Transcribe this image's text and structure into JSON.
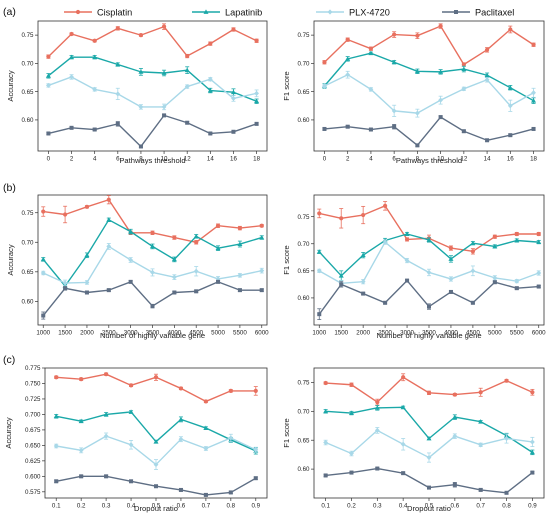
{
  "legend": {
    "colors": [
      "#e8705f",
      "#1aa8a8",
      "#a8d8e8",
      "#5e6e84"
    ],
    "markers": [
      "circle",
      "triangle",
      "diamond",
      "square"
    ]
  },
  "panel_labels": [
    "(a)",
    "(b)",
    "(c)"
  ],
  "chart_data": [
    {
      "type": "line",
      "panel": "(a)",
      "side": "left",
      "xlabel": "Pathways threshold",
      "ylabel": "Accuracy",
      "x": [
        0,
        2,
        4,
        6,
        8,
        10,
        12,
        14,
        16,
        18
      ],
      "xlim": [
        -0.9,
        18.9
      ],
      "ylim": [
        0.545,
        0.775
      ],
      "yticks": [
        0.6,
        0.65,
        0.7,
        0.75
      ],
      "ytick_labels": [
        "0.60",
        "0.65",
        "0.70",
        "0.75"
      ],
      "grid": false,
      "series": [
        {
          "name": "Cisplatin",
          "values": [
            0.712,
            0.752,
            0.74,
            0.762,
            0.75,
            0.765,
            0.713,
            0.735,
            0.76,
            0.74
          ],
          "err": [
            0.003,
            0.002,
            0.002,
            0.003,
            0.002,
            0.005,
            0.003,
            0.003,
            0.003,
            0.003
          ]
        },
        {
          "name": "Lapatinib",
          "values": [
            0.678,
            0.711,
            0.711,
            0.698,
            0.685,
            0.683,
            0.688,
            0.652,
            0.649,
            0.633
          ],
          "err": [
            0.004,
            0.003,
            0.003,
            0.003,
            0.006,
            0.005,
            0.006,
            0.004,
            0.006,
            0.004
          ]
        },
        {
          "name": "PLX-4720",
          "values": [
            0.661,
            0.676,
            0.654,
            0.646,
            0.623,
            0.623,
            0.659,
            0.672,
            0.638,
            0.647
          ],
          "err": [
            0.003,
            0.004,
            0.003,
            0.01,
            0.004,
            0.005,
            0.003,
            0.003,
            0.005,
            0.006
          ]
        },
        {
          "name": "Paclitaxel",
          "values": [
            0.576,
            0.586,
            0.583,
            0.593,
            0.553,
            0.608,
            0.595,
            0.576,
            0.579,
            0.593
          ],
          "err": [
            0.002,
            0.002,
            0.002,
            0.004,
            0.002,
            0.002,
            0.002,
            0.002,
            0.002,
            0.002
          ]
        }
      ]
    },
    {
      "type": "line",
      "panel": "(a)",
      "side": "right",
      "xlabel": "Pathways threshold",
      "ylabel": "F1 score",
      "x": [
        0,
        2,
        4,
        6,
        8,
        10,
        12,
        14,
        16,
        18
      ],
      "xlim": [
        -0.9,
        18.9
      ],
      "ylim": [
        0.545,
        0.775
      ],
      "yticks": [
        0.6,
        0.65,
        0.7,
        0.75
      ],
      "ytick_labels": [
        "0.60",
        "0.65",
        "0.70",
        "0.75"
      ],
      "grid": false,
      "series": [
        {
          "name": "Cisplatin",
          "values": [
            0.702,
            0.742,
            0.726,
            0.751,
            0.749,
            0.766,
            0.698,
            0.724,
            0.76,
            0.733
          ],
          "err": [
            0.003,
            0.003,
            0.003,
            0.005,
            0.005,
            0.004,
            0.003,
            0.004,
            0.006,
            0.003
          ]
        },
        {
          "name": "Lapatinib",
          "values": [
            0.66,
            0.708,
            0.718,
            0.702,
            0.686,
            0.685,
            0.69,
            0.679,
            0.657,
            0.634
          ],
          "err": [
            0.004,
            0.004,
            0.002,
            0.003,
            0.004,
            0.004,
            0.005,
            0.004,
            0.004,
            0.005
          ]
        },
        {
          "name": "PLX-4720",
          "values": [
            0.66,
            0.68,
            0.654,
            0.616,
            0.612,
            0.635,
            0.655,
            0.671,
            0.625,
            0.648
          ],
          "err": [
            0.003,
            0.006,
            0.003,
            0.01,
            0.007,
            0.007,
            0.003,
            0.004,
            0.01,
            0.008
          ]
        },
        {
          "name": "Paclitaxel",
          "values": [
            0.584,
            0.588,
            0.583,
            0.588,
            0.555,
            0.605,
            0.58,
            0.564,
            0.573,
            0.584
          ],
          "err": [
            0.002,
            0.002,
            0.002,
            0.004,
            0.002,
            0.002,
            0.002,
            0.002,
            0.002,
            0.002
          ]
        }
      ]
    },
    {
      "type": "line",
      "panel": "(b)",
      "side": "left",
      "xlabel": "Number of highly variable gene",
      "ylabel": "Accuracy",
      "x": [
        1000,
        1500,
        2000,
        2500,
        3000,
        3500,
        4000,
        4500,
        5000,
        5500,
        6000
      ],
      "xlim": [
        880,
        6120
      ],
      "ylim": [
        0.56,
        0.78
      ],
      "yticks": [
        0.6,
        0.65,
        0.7,
        0.75
      ],
      "ytick_labels": [
        "0.60",
        "0.65",
        "0.70",
        "0.75"
      ],
      "grid": false,
      "series": [
        {
          "name": "Cisplatin",
          "values": [
            0.752,
            0.747,
            0.76,
            0.772,
            0.716,
            0.716,
            0.708,
            0.7,
            0.728,
            0.724,
            0.728
          ],
          "err": [
            0.008,
            0.014,
            0.002,
            0.007,
            0.003,
            0.003,
            0.003,
            0.003,
            0.003,
            0.003,
            0.002
          ]
        },
        {
          "name": "Lapatinib",
          "values": [
            0.671,
            0.626,
            0.678,
            0.738,
            0.718,
            0.693,
            0.671,
            0.71,
            0.69,
            0.697,
            0.708
          ],
          "err": [
            0.003,
            0.005,
            0.004,
            0.003,
            0.004,
            0.004,
            0.004,
            0.003,
            0.004,
            0.005,
            0.003
          ]
        },
        {
          "name": "PLX-4720",
          "values": [
            0.648,
            0.631,
            0.632,
            0.693,
            0.67,
            0.649,
            0.641,
            0.651,
            0.638,
            0.644,
            0.652
          ],
          "err": [
            0.003,
            0.005,
            0.003,
            0.005,
            0.004,
            0.006,
            0.004,
            0.008,
            0.004,
            0.003,
            0.004
          ]
        },
        {
          "name": "Paclitaxel",
          "values": [
            0.576,
            0.622,
            0.615,
            0.619,
            0.633,
            0.592,
            0.615,
            0.617,
            0.633,
            0.619,
            0.619
          ],
          "err": [
            0.006,
            0.003,
            0.002,
            0.002,
            0.002,
            0.003,
            0.002,
            0.002,
            0.002,
            0.002,
            0.002
          ]
        }
      ]
    },
    {
      "type": "line",
      "panel": "(b)",
      "side": "right",
      "xlabel": "Number of highly variable gene",
      "ylabel": "F1 score",
      "x": [
        1000,
        1500,
        2000,
        2500,
        3000,
        3500,
        4000,
        4500,
        5000,
        5500,
        6000
      ],
      "xlim": [
        880,
        6120
      ],
      "ylim": [
        0.55,
        0.79
      ],
      "yticks": [
        0.6,
        0.65,
        0.7,
        0.75
      ],
      "ytick_labels": [
        "0.60",
        "0.65",
        "0.70",
        "0.75"
      ],
      "grid": false,
      "series": [
        {
          "name": "Cisplatin",
          "values": [
            0.756,
            0.747,
            0.753,
            0.77,
            0.708,
            0.71,
            0.692,
            0.686,
            0.713,
            0.718,
            0.718
          ],
          "err": [
            0.008,
            0.018,
            0.016,
            0.008,
            0.003,
            0.006,
            0.004,
            0.005,
            0.003,
            0.003,
            0.003
          ]
        },
        {
          "name": "Lapatinib",
          "values": [
            0.685,
            0.641,
            0.679,
            0.706,
            0.718,
            0.707,
            0.672,
            0.701,
            0.695,
            0.706,
            0.703
          ],
          "err": [
            0.003,
            0.009,
            0.005,
            0.004,
            0.003,
            0.004,
            0.006,
            0.003,
            0.003,
            0.003,
            0.003
          ]
        },
        {
          "name": "PLX-4720",
          "values": [
            0.65,
            0.627,
            0.63,
            0.703,
            0.669,
            0.647,
            0.635,
            0.65,
            0.637,
            0.631,
            0.646
          ],
          "err": [
            0.003,
            0.005,
            0.004,
            0.004,
            0.004,
            0.006,
            0.004,
            0.009,
            0.004,
            0.003,
            0.004
          ]
        },
        {
          "name": "Paclitaxel",
          "values": [
            0.57,
            0.625,
            0.608,
            0.591,
            0.632,
            0.584,
            0.611,
            0.591,
            0.629,
            0.618,
            0.621
          ],
          "err": [
            0.01,
            0.005,
            0.002,
            0.002,
            0.002,
            0.005,
            0.002,
            0.002,
            0.002,
            0.002,
            0.002
          ]
        }
      ]
    },
    {
      "type": "line",
      "panel": "(c)",
      "side": "left",
      "xlabel": "Dropout ratio",
      "ylabel": "Accuracy",
      "x": [
        0.1,
        0.2,
        0.3,
        0.4,
        0.5,
        0.6,
        0.7,
        0.8,
        0.9
      ],
      "xlim": [
        0.055,
        0.945
      ],
      "ylim": [
        0.565,
        0.775
      ],
      "yticks": [
        0.575,
        0.6,
        0.625,
        0.65,
        0.675,
        0.7,
        0.725,
        0.75,
        0.775
      ],
      "ytick_labels": [
        "0.575",
        "0.600",
        "0.625",
        "0.650",
        "0.675",
        "0.700",
        "0.725",
        "0.750",
        "0.775"
      ],
      "grid": false,
      "series": [
        {
          "name": "Cisplatin",
          "values": [
            0.76,
            0.757,
            0.765,
            0.747,
            0.76,
            0.742,
            0.721,
            0.738,
            0.738
          ],
          "err": [
            0.002,
            0.002,
            0.002,
            0.002,
            0.005,
            0.002,
            0.002,
            0.002,
            0.007
          ]
        },
        {
          "name": "Lapatinib",
          "values": [
            0.697,
            0.689,
            0.7,
            0.704,
            0.656,
            0.692,
            0.678,
            0.659,
            0.641
          ],
          "err": [
            0.003,
            0.002,
            0.003,
            0.002,
            0.002,
            0.004,
            0.002,
            0.004,
            0.005
          ]
        },
        {
          "name": "PLX-4720",
          "values": [
            0.649,
            0.642,
            0.665,
            0.651,
            0.619,
            0.66,
            0.645,
            0.662,
            0.643
          ],
          "err": [
            0.003,
            0.004,
            0.005,
            0.007,
            0.008,
            0.004,
            0.003,
            0.006,
            0.004
          ]
        },
        {
          "name": "Paclitaxel",
          "values": [
            0.592,
            0.6,
            0.6,
            0.592,
            0.584,
            0.578,
            0.57,
            0.574,
            0.597
          ],
          "err": [
            0.002,
            0.002,
            0.002,
            0.002,
            0.002,
            0.002,
            0.002,
            0.002,
            0.002
          ]
        }
      ]
    },
    {
      "type": "line",
      "panel": "(c)",
      "side": "right",
      "xlabel": "Dropout ratio",
      "ylabel": "F1 score",
      "x": [
        0.1,
        0.2,
        0.3,
        0.4,
        0.5,
        0.6,
        0.7,
        0.8,
        0.9
      ],
      "xlim": [
        0.055,
        0.945
      ],
      "ylim": [
        0.55,
        0.775
      ],
      "yticks": [
        0.6,
        0.65,
        0.7,
        0.75
      ],
      "ytick_labels": [
        "0.60",
        "0.65",
        "0.70",
        "0.75"
      ],
      "grid": false,
      "series": [
        {
          "name": "Cisplatin",
          "values": [
            0.749,
            0.746,
            0.716,
            0.759,
            0.732,
            0.729,
            0.733,
            0.753,
            0.733
          ],
          "err": [
            0.002,
            0.003,
            0.005,
            0.006,
            0.003,
            0.002,
            0.007,
            0.002,
            0.005
          ]
        },
        {
          "name": "Lapatinib",
          "values": [
            0.7,
            0.697,
            0.706,
            0.707,
            0.653,
            0.69,
            0.682,
            0.658,
            0.629
          ],
          "err": [
            0.003,
            0.003,
            0.004,
            0.002,
            0.002,
            0.004,
            0.002,
            0.004,
            0.004
          ]
        },
        {
          "name": "PLX-4720",
          "values": [
            0.646,
            0.627,
            0.667,
            0.643,
            0.62,
            0.657,
            0.642,
            0.653,
            0.647
          ],
          "err": [
            0.004,
            0.004,
            0.005,
            0.01,
            0.008,
            0.004,
            0.003,
            0.008,
            0.008
          ]
        },
        {
          "name": "Paclitaxel",
          "values": [
            0.589,
            0.594,
            0.601,
            0.593,
            0.568,
            0.573,
            0.564,
            0.559,
            0.594
          ],
          "err": [
            0.002,
            0.002,
            0.002,
            0.002,
            0.002,
            0.004,
            0.002,
            0.002,
            0.002
          ]
        }
      ]
    }
  ]
}
